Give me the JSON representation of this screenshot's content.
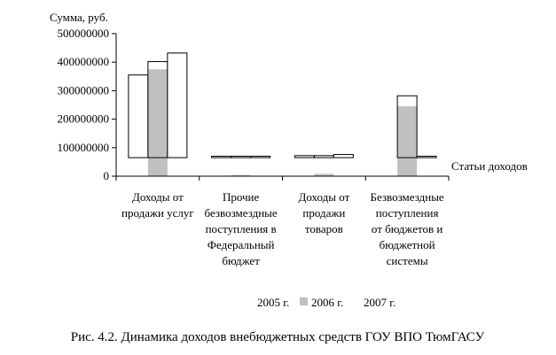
{
  "chart_data": {
    "type": "bar",
    "title": "",
    "ylabel": "Сумма, руб.",
    "xlabel": "Статьи доходов",
    "ylim": [
      0,
      500000000
    ],
    "yticks": [
      0,
      100000000,
      200000000,
      300000000,
      400000000,
      500000000
    ],
    "ytick_labels": [
      "0",
      "100000000",
      "200000000",
      "300000000",
      "400000000",
      "500000000"
    ],
    "categories": [
      [
        "Доходы от",
        "продажи услуг"
      ],
      [
        "Прочие",
        "безвозмездные",
        "поступления в",
        "Федеральный",
        "бюджет"
      ],
      [
        "Доходы от",
        "продажи",
        "товаров"
      ],
      [
        "Безвозмездные",
        "поступления",
        "от бюджетов и",
        "бюджетной",
        "системы"
      ]
    ],
    "series": [
      {
        "name": "2005 г.",
        "color": "#ffffff",
        "values": [
          355000000,
          0,
          0,
          0
        ]
      },
      {
        "name": "2006 г.",
        "color": "#c0c0c0",
        "values": [
          402000000,
          4000000,
          8000000,
          282000000
        ]
      },
      {
        "name": "2007 г.",
        "color": "#ffffff",
        "values": [
          432000000,
          5000000,
          8000000,
          5000000
        ]
      }
    ],
    "floating_bars": [
      {
        "category": 0,
        "series": 0,
        "bottom": 65000000,
        "top": 355000000
      },
      {
        "category": 0,
        "series": 1,
        "bottom": 0,
        "top": 375000000,
        "fill": "#c0c0c0"
      },
      {
        "category": 0,
        "series": 1,
        "bottom": 65000000,
        "top": 402000000,
        "fill": "none"
      },
      {
        "category": 0,
        "series": 2,
        "bottom": 65000000,
        "top": 432000000
      },
      {
        "category": 1,
        "series": 1,
        "bottom": 0,
        "top": 4000000,
        "fill": "#c0c0c0"
      },
      {
        "category": 1,
        "series": 0,
        "bottom": 65000000,
        "top": 70000000
      },
      {
        "category": 1,
        "series": 1,
        "bottom": 65000000,
        "top": 70000000,
        "fill": "none"
      },
      {
        "category": 1,
        "series": 2,
        "bottom": 65000000,
        "top": 70000000
      },
      {
        "category": 2,
        "series": 1,
        "bottom": 0,
        "top": 8000000,
        "fill": "#c0c0c0"
      },
      {
        "category": 2,
        "series": 0,
        "bottom": 65000000,
        "top": 72000000
      },
      {
        "category": 2,
        "series": 1,
        "bottom": 65000000,
        "top": 72000000,
        "fill": "none"
      },
      {
        "category": 2,
        "series": 2,
        "bottom": 65000000,
        "top": 76000000
      },
      {
        "category": 3,
        "series": 1,
        "bottom": 0,
        "top": 245000000,
        "fill": "#c0c0c0"
      },
      {
        "category": 3,
        "series": 1,
        "bottom": 65000000,
        "top": 282000000,
        "fill": "none"
      },
      {
        "category": 3,
        "series": 2,
        "bottom": 65000000,
        "top": 70000000
      }
    ],
    "legend_position": "bottom",
    "grid": false
  },
  "caption": "Рис. 4.2. Динамика доходов внебюджетных средств ГОУ ВПО ТюмГАСУ"
}
